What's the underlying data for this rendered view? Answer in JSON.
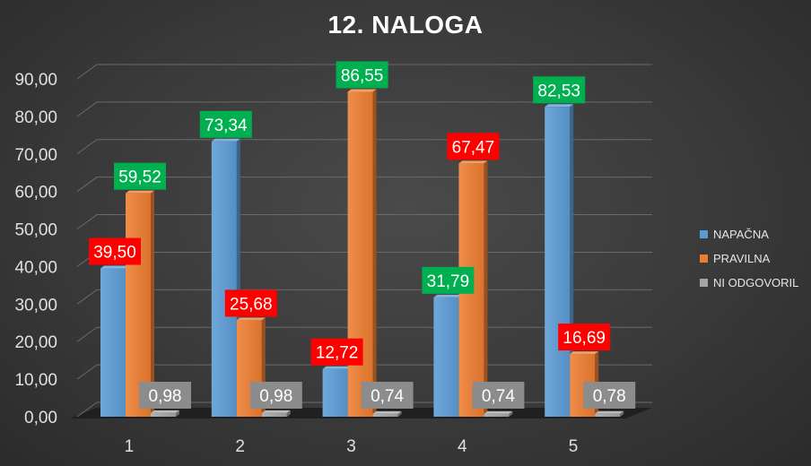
{
  "colors": {
    "series": [
      "#5b9bd5",
      "#ed7d31",
      "#a5a5a5"
    ],
    "label_backgrounds": {
      "red": "#ff0000",
      "green": "#00b050",
      "gray": "#8c8c8c"
    },
    "axis_text": "#e0e0e0",
    "grid": "#6a6a6a"
  },
  "chart_data": {
    "type": "bar",
    "title": "12. NALOGA",
    "xlabel": "",
    "ylabel": "",
    "categories": [
      "1",
      "2",
      "3",
      "4",
      "5"
    ],
    "ylim": [
      0,
      90
    ],
    "y_ticks": [
      "0,00",
      "10,00",
      "20,00",
      "30,00",
      "40,00",
      "50,00",
      "60,00",
      "70,00",
      "80,00",
      "90,00"
    ],
    "grid": true,
    "legend_position": "right",
    "series": [
      {
        "name": "NAPAČNA",
        "values": [
          39.5,
          73.34,
          12.72,
          31.79,
          82.53
        ]
      },
      {
        "name": "PRAVILNA",
        "values": [
          59.52,
          25.68,
          86.55,
          67.47,
          16.69
        ]
      },
      {
        "name": "NI ODGOVORIL",
        "values": [
          0.98,
          0.98,
          0.74,
          0.74,
          0.78
        ]
      }
    ],
    "data_labels": [
      [
        "39,50",
        "73,34",
        "12,72",
        "31,79",
        "82,53"
      ],
      [
        "59,52",
        "25,68",
        "86,55",
        "67,47",
        "16,69"
      ],
      [
        "0,98",
        "0,98",
        "0,74",
        "0,74",
        "0,78"
      ]
    ],
    "label_colors": [
      [
        "red",
        "green",
        "red",
        "green",
        "green"
      ],
      [
        "green",
        "red",
        "green",
        "red",
        "red"
      ],
      [
        "gray",
        "gray",
        "gray",
        "gray",
        "gray"
      ]
    ]
  }
}
